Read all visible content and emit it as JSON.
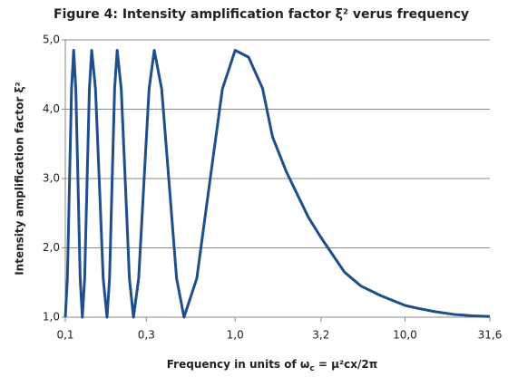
{
  "chart_data": {
    "type": "line",
    "title": "Figure 4: Intensity amplification factor ξ² verus frequency",
    "y_label": "Intensity amplification factor ξ²",
    "x_label": [
      "Frequency  in  units of  ω",
      "c",
      " = μ²cx/2π"
    ],
    "log_x": true,
    "grid": true,
    "x": [
      0.1,
      0.1029,
      0.1058,
      0.1088,
      0.112,
      0.1153,
      0.1188,
      0.1223,
      0.126,
      0.13,
      0.1342,
      0.1386,
      0.143,
      0.1506,
      0.1587,
      0.1671,
      0.176,
      0.1822,
      0.1885,
      0.1951,
      0.202,
      0.2135,
      0.2257,
      0.2384,
      0.252,
      0.2704,
      0.2901,
      0.3113,
      0.334,
      0.3694,
      0.4086,
      0.452,
      0.5,
      0.5946,
      0.7071,
      0.8409,
      1.0,
      1.2,
      1.45,
      1.66,
      2.0,
      2.7,
      3.2,
      4.4,
      5.5,
      7.2,
      10,
      11.8,
      15,
      19.4,
      25,
      31.6
    ],
    "series": [
      {
        "name": "ξ²",
        "color": "#1f4e8c",
        "values": [
          1.0,
          1.56,
          2.93,
          4.29,
          4.85,
          4.29,
          2.93,
          1.56,
          1.0,
          1.56,
          2.93,
          4.29,
          4.85,
          4.29,
          2.93,
          1.56,
          1.0,
          1.56,
          2.93,
          4.29,
          4.85,
          4.29,
          2.93,
          1.56,
          1.0,
          1.56,
          2.93,
          4.29,
          4.85,
          4.29,
          2.93,
          1.56,
          1.0,
          1.56,
          2.93,
          4.29,
          4.85,
          4.75,
          4.3,
          3.6,
          3.1,
          2.44,
          2.15,
          1.65,
          1.45,
          1.31,
          1.17,
          1.13,
          1.08,
          1.04,
          1.02,
          1.01
        ]
      }
    ],
    "xlim": [
      0.1,
      31.6
    ],
    "xticks": [
      {
        "value": 0.1,
        "label": "0,1"
      },
      {
        "value": 0.3,
        "label": "0,3"
      },
      {
        "value": 1.0,
        "label": "1,0"
      },
      {
        "value": 3.2,
        "label": "3,2"
      },
      {
        "value": 10.0,
        "label": "10,0"
      },
      {
        "value": 31.6,
        "label": "31,6"
      }
    ],
    "ylim": [
      1.0,
      5.0
    ],
    "yticks": [
      {
        "value": 1.0,
        "label": "1,0"
      },
      {
        "value": 2.0,
        "label": "2,0"
      },
      {
        "value": 3.0,
        "label": "3,0"
      },
      {
        "value": 4.0,
        "label": "4,0"
      },
      {
        "value": 5.0,
        "label": "5,0"
      }
    ]
  }
}
